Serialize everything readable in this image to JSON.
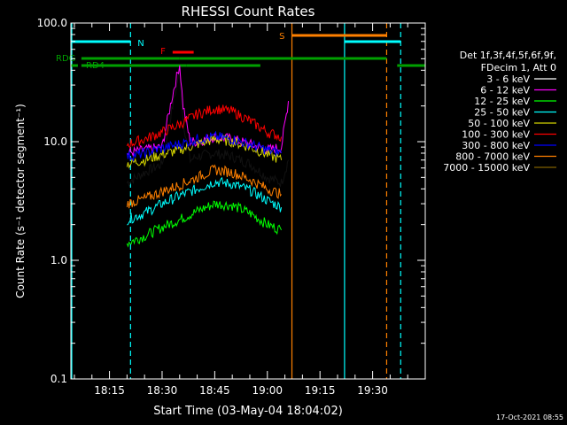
{
  "chart_data": {
    "type": "line",
    "title": "RHESSI Count Rates",
    "xlabel": "Start Time (03-May-04 18:04:02)",
    "ylabel": "Count Rate (s⁻¹ detector segment⁻¹)",
    "y_scale": "log",
    "ylim": [
      0.1,
      100.0
    ],
    "xlim": [
      "18:04",
      "19:45"
    ],
    "x_ticks": [
      "18:15",
      "18:30",
      "18:45",
      "19:00",
      "19:15",
      "19:30"
    ],
    "y_ticks": [
      "0.1",
      "1.0",
      "10.0",
      "100.0"
    ],
    "legend_header": [
      "Det 1f,3f,4f,5f,6f,9f,",
      "FDecim 1, Att 0"
    ],
    "legend_position": "right",
    "timestamp": "17-Oct-2021 08:55",
    "flags": {
      "N": {
        "label": "N",
        "color": "#00ffff"
      },
      "F": {
        "label": "F",
        "color": "#ff0000"
      },
      "S": {
        "label": "S",
        "color": "#ff8000"
      },
      "RDG": {
        "label": "RDG",
        "color": "#00a000"
      },
      "RD4": {
        "label": "RD4",
        "color": "#00a000"
      }
    },
    "series": [
      {
        "name": "3 - 6 keV",
        "color": "#000000",
        "x": [
          "18:20",
          "18:25",
          "18:30",
          "18:33",
          "18:35",
          "18:36",
          "18:38",
          "18:40",
          "18:45",
          "18:50",
          "18:55",
          "19:00",
          "19:04",
          "19:06"
        ],
        "y": [
          4.5,
          5.5,
          6.5,
          20,
          40,
          15,
          7,
          7.5,
          8,
          7.5,
          6.5,
          5,
          4.5,
          7
        ]
      },
      {
        "name": "6 - 12 keV",
        "color": "#ff00ff",
        "x": [
          "18:20",
          "18:25",
          "18:30",
          "18:33",
          "18:35",
          "18:36",
          "18:38",
          "18:40",
          "18:45",
          "18:50",
          "18:55",
          "19:00",
          "19:04",
          "19:06"
        ],
        "y": [
          8,
          8.5,
          9,
          25,
          45,
          20,
          10,
          10,
          11,
          10.5,
          9.5,
          8.5,
          9,
          22
        ]
      },
      {
        "name": "12 - 25 keV",
        "color": "#00ff00",
        "x": [
          "18:20",
          "18:25",
          "18:30",
          "18:35",
          "18:40",
          "18:45",
          "18:50",
          "18:55",
          "19:00",
          "19:04"
        ],
        "y": [
          1.4,
          1.6,
          1.9,
          2.2,
          2.6,
          3.0,
          2.9,
          2.5,
          2.0,
          1.8
        ]
      },
      {
        "name": "25 - 50 keV",
        "color": "#00ffff",
        "x": [
          "18:20",
          "18:25",
          "18:30",
          "18:35",
          "18:40",
          "18:45",
          "18:50",
          "18:55",
          "19:00",
          "19:04"
        ],
        "y": [
          2.2,
          2.5,
          3.0,
          3.5,
          4.0,
          4.6,
          4.4,
          3.9,
          3.2,
          2.8
        ]
      },
      {
        "name": "50 - 100 keV",
        "color": "#d4d400",
        "x": [
          "18:20",
          "18:25",
          "18:30",
          "18:35",
          "18:40",
          "18:45",
          "18:50",
          "18:55",
          "19:00",
          "19:04"
        ],
        "y": [
          6.5,
          7,
          7.8,
          8.5,
          9.5,
          10.5,
          10,
          9,
          7.8,
          7
        ]
      },
      {
        "name": "100 - 300 keV",
        "color": "#ff0000",
        "x": [
          "18:20",
          "18:25",
          "18:30",
          "18:35",
          "18:40",
          "18:45",
          "18:50",
          "18:55",
          "19:00",
          "19:04"
        ],
        "y": [
          9.5,
          10.5,
          12,
          14,
          17,
          19,
          18,
          15,
          12,
          11
        ]
      },
      {
        "name": "300 - 800 keV",
        "color": "#0000ff",
        "x": [
          "18:20",
          "18:25",
          "18:30",
          "18:35",
          "18:40",
          "18:45",
          "18:50",
          "18:55",
          "19:00",
          "19:04"
        ],
        "y": [
          7.5,
          8,
          8.8,
          9.5,
          10.5,
          11,
          10.5,
          9.5,
          8.5,
          8
        ]
      },
      {
        "name": "800 - 7000 keV",
        "color": "#ff8000",
        "x": [
          "18:20",
          "18:25",
          "18:30",
          "18:35",
          "18:40",
          "18:45",
          "18:50",
          "18:55",
          "19:00",
          "19:04"
        ],
        "y": [
          3.0,
          3.3,
          3.8,
          4.3,
          5.0,
          5.8,
          5.5,
          4.8,
          4.0,
          3.6
        ]
      },
      {
        "name": "7000 - 15000 keV",
        "color": "#806000",
        "x": [],
        "y": []
      }
    ]
  }
}
